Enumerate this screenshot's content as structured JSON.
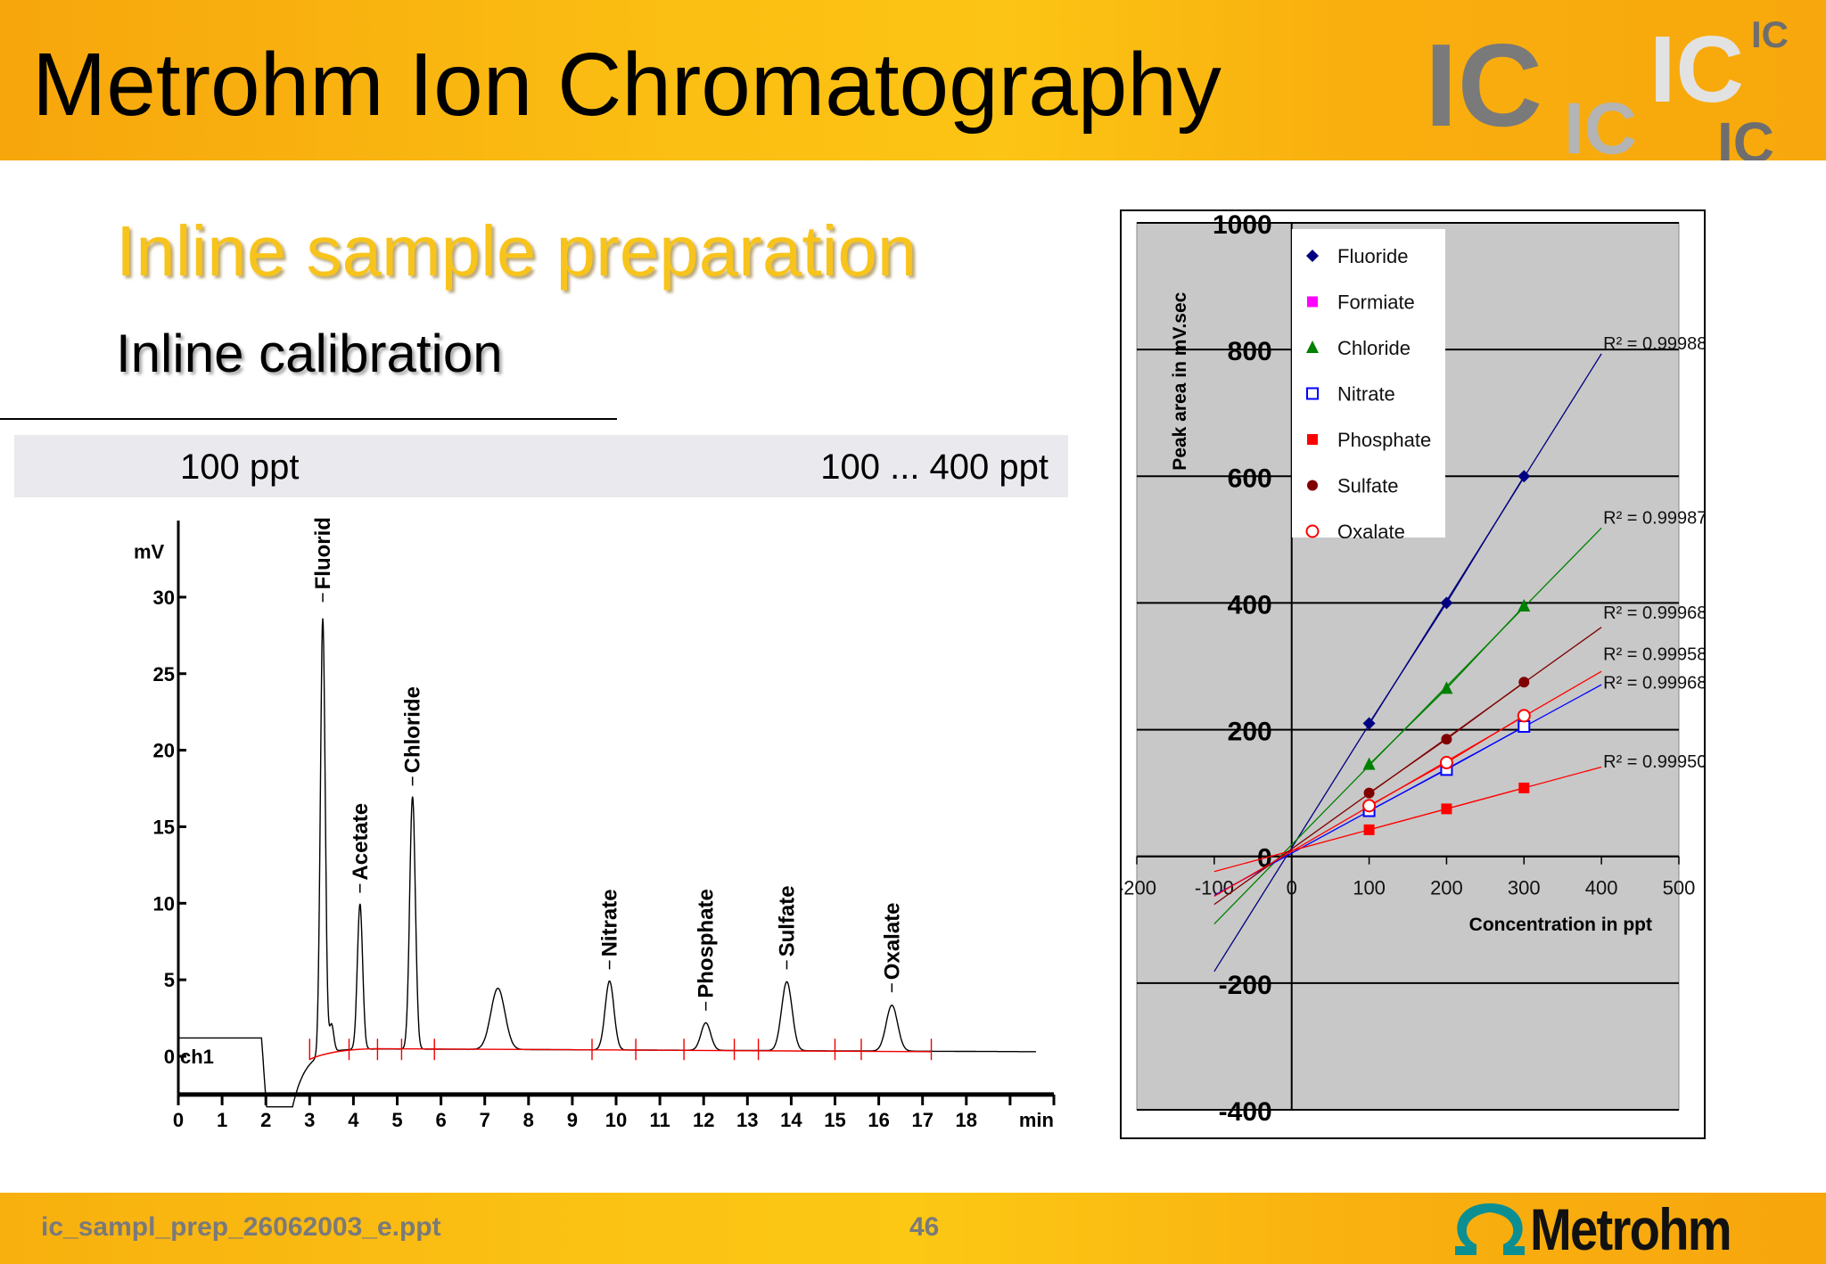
{
  "header": {
    "title": "Metrohm Ion Chromatography",
    "logo_letters": [
      "IC",
      "IC",
      "IC",
      "IC",
      "IC"
    ],
    "colors": {
      "header_orange": "#f9b010",
      "logo_dark": "#7a7a7a",
      "logo_mid": "#b4b4b4",
      "logo_light": "#e2e2e2"
    }
  },
  "slide": {
    "section_title": "Inline sample preparation",
    "subtitle": "Inline calibration",
    "band_left": "100 ppt",
    "band_right": "100 ... 400 ppt"
  },
  "footer": {
    "filename": "ic_sampl_prep_26062003_e.ppt",
    "page_number": "46",
    "logo_text": "Metrohm",
    "logo_icon": "omega-icon"
  },
  "chart_data": [
    {
      "type": "line",
      "title": "",
      "xlabel": "min",
      "ylabel": "mV",
      "channel_label": "ch1",
      "xlim": [
        0,
        20
      ],
      "ylim": [
        -2.5,
        35
      ],
      "x_ticks": [
        0,
        1,
        2,
        3,
        4,
        5,
        6,
        7,
        8,
        9,
        10,
        11,
        12,
        13,
        14,
        15,
        16,
        17,
        18
      ],
      "y_ticks": [
        0,
        5,
        10,
        15,
        20,
        25,
        30
      ],
      "grid": false,
      "baseline_level": 1.2,
      "peaks": [
        {
          "name": "Fluorid",
          "time": 3.3,
          "height": 28.5
        },
        {
          "name": "Acetate",
          "time": 4.15,
          "height": 9.5
        },
        {
          "name": "Chloride",
          "time": 5.35,
          "height": 16.5
        },
        {
          "name": "",
          "time": 7.3,
          "height": 4.0
        },
        {
          "name": "Nitrate",
          "time": 9.85,
          "height": 4.5
        },
        {
          "name": "Phosphate",
          "time": 12.05,
          "height": 1.8
        },
        {
          "name": "Sulfate",
          "time": 13.9,
          "height": 4.5
        },
        {
          "name": "Oxalate",
          "time": 16.3,
          "height": 3.0
        }
      ]
    },
    {
      "type": "scatter",
      "title": "",
      "xlabel": "Concentration in ppt",
      "ylabel": "Peak area in mV.sec",
      "xlim": [
        -200,
        500
      ],
      "ylim": [
        -400,
        1000
      ],
      "x_ticks": [
        "-200",
        "-100",
        "0",
        "100",
        "200",
        "300",
        "400",
        "500"
      ],
      "y_ticks": [
        "-400",
        "-200",
        "0",
        "200",
        "400",
        "600",
        "800",
        "1000"
      ],
      "grid": true,
      "legend_position": "top-left",
      "background": "#c8c8c8",
      "trendline_range": [
        -100,
        400
      ],
      "series": [
        {
          "name": "Fluoride",
          "marker": "diamond",
          "color": "#000080",
          "x": [
            100,
            200,
            300
          ],
          "y": [
            210,
            400,
            600
          ],
          "r2": "R² = 0.99988"
        },
        {
          "name": "Formiate",
          "marker": "square",
          "color": "#ff00ff",
          "x": [],
          "y": [],
          "r2": ""
        },
        {
          "name": "Chloride",
          "marker": "triangle",
          "color": "#008000",
          "x": [
            100,
            200,
            300
          ],
          "y": [
            145,
            265,
            395
          ],
          "r2": "R² = 0.99987"
        },
        {
          "name": "Nitrate",
          "marker": "open-square",
          "color": "#0000ff",
          "x": [
            100,
            200,
            300
          ],
          "y": [
            72,
            137,
            205
          ],
          "r2": "R² = 0.99968"
        },
        {
          "name": "Phosphate",
          "marker": "square",
          "color": "#ff0000",
          "x": [
            100,
            200,
            300
          ],
          "y": [
            42,
            75,
            108
          ],
          "r2": "R² = 0.99950"
        },
        {
          "name": "Sulfate",
          "marker": "circle",
          "color": "#800000",
          "x": [
            100,
            200,
            300
          ],
          "y": [
            100,
            185,
            275
          ],
          "r2": "R² = 0.99968"
        },
        {
          "name": "Oxalate",
          "marker": "open-circle",
          "color": "#ff0000",
          "x": [
            100,
            200,
            300
          ],
          "y": [
            80,
            148,
            222
          ],
          "r2": "R² = 0.99958"
        }
      ]
    }
  ]
}
